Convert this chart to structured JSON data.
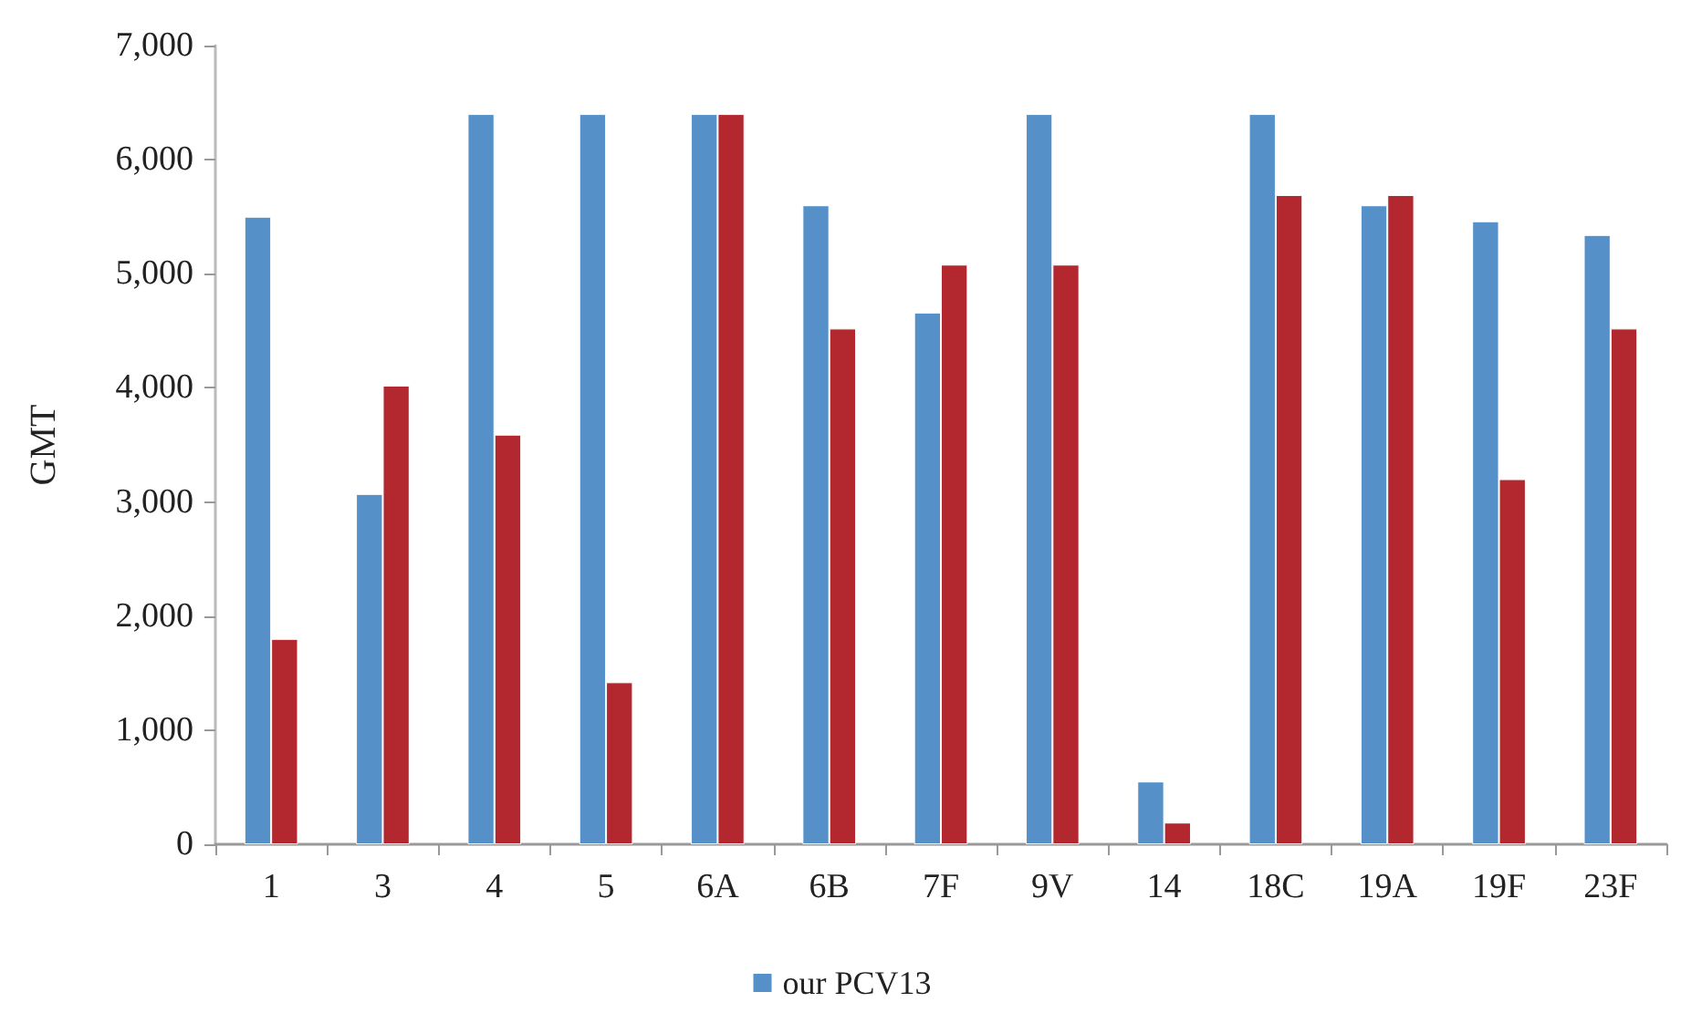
{
  "chart_data": {
    "type": "bar",
    "ylabel": "GMT",
    "categories": [
      "1",
      "3",
      "4",
      "5",
      "6A",
      "6B",
      "7F",
      "9V",
      "14",
      "18C",
      "19A",
      "19F",
      "23F"
    ],
    "series": [
      {
        "name": "our PCV13",
        "color": "#5591c8",
        "values": [
          5500,
          3070,
          6400,
          6400,
          6400,
          5600,
          4660,
          6400,
          550,
          6400,
          5600,
          5460,
          5340
        ]
      },
      {
        "color": "#b3282f",
        "values": [
          1800,
          4020,
          3590,
          1420,
          6400,
          4520,
          5080,
          5080,
          190,
          5690,
          5690,
          3200,
          4520
        ]
      }
    ],
    "ylim": [
      0,
      7000
    ],
    "yticks": [
      {
        "value": 0,
        "label": "0"
      },
      {
        "value": 1000,
        "label": "1,000"
      },
      {
        "value": 2000,
        "label": "2,000"
      },
      {
        "value": 3000,
        "label": "3,000"
      },
      {
        "value": 4000,
        "label": "4,000"
      },
      {
        "value": 5000,
        "label": "5,000"
      },
      {
        "value": 6000,
        "label": "6,000"
      },
      {
        "value": 7000,
        "label": "7,000"
      }
    ],
    "grid": false,
    "legend": "bottom"
  }
}
